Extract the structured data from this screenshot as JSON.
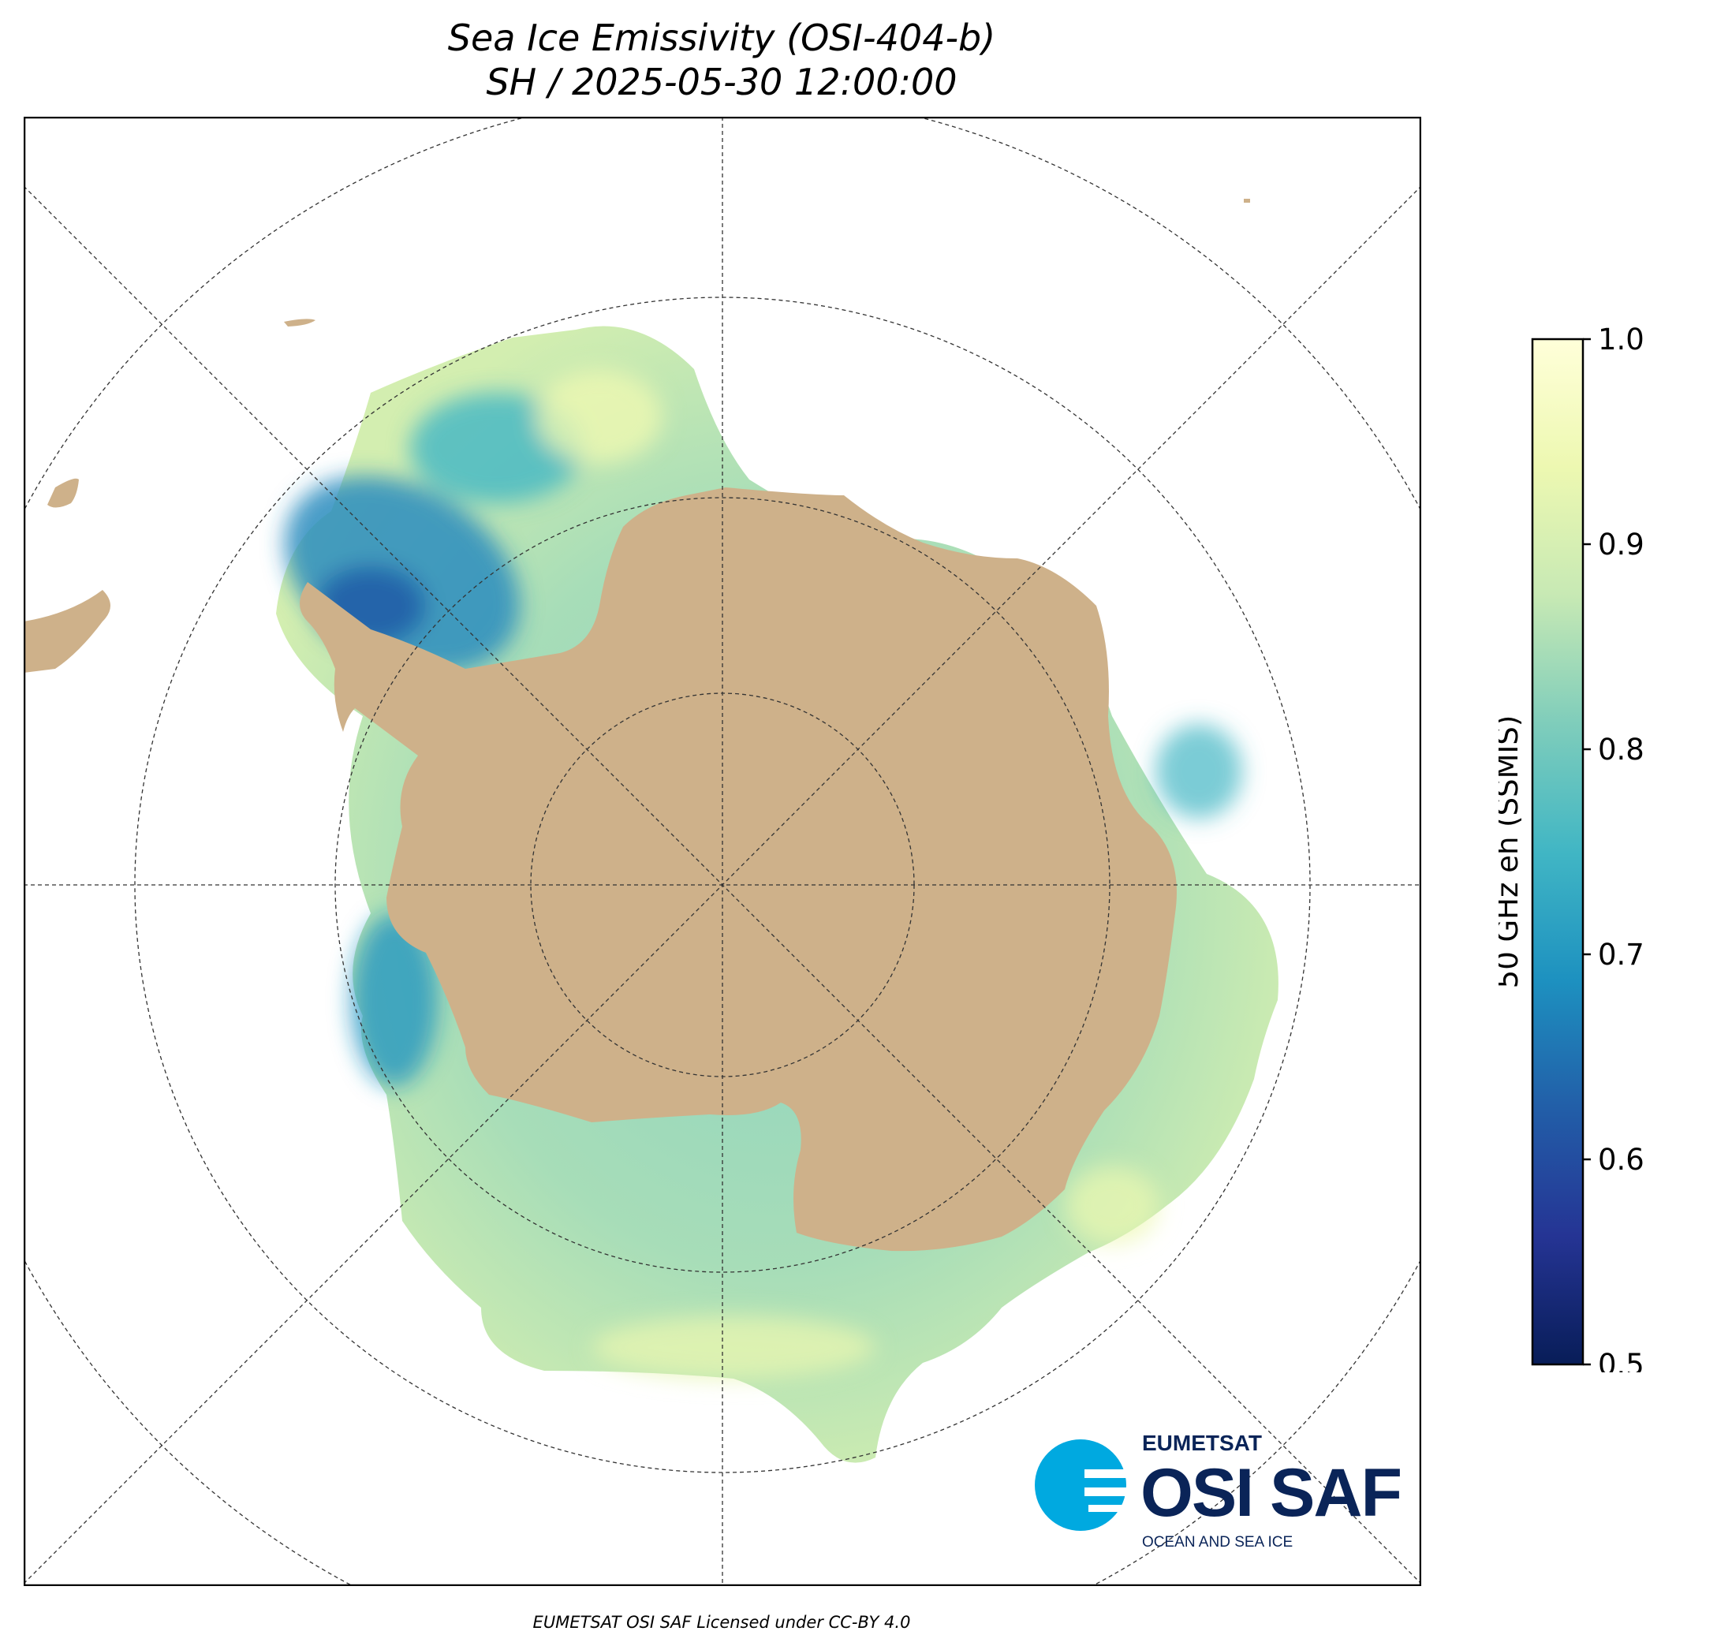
{
  "title": {
    "line1": "Sea Ice Emissivity (OSI-404-b)",
    "line2": "SH / 2025-05-30 12:00:00"
  },
  "colorbar": {
    "label": "50 GHz eh (SSMIS)",
    "ticks": [
      "1.0",
      "0.9",
      "0.8",
      "0.7",
      "0.6",
      "0.5"
    ],
    "range": [
      0.5,
      1.0
    ],
    "colormap": "YlGnBu_r",
    "stops": [
      "#081d58",
      "#253494",
      "#225ea8",
      "#1d91c0",
      "#41b6c4",
      "#7fcdbb",
      "#c7e9b4",
      "#edf8b1",
      "#ffffd9"
    ]
  },
  "map": {
    "projection": "south-polar-stereographic",
    "land_color": "#ceb18a",
    "ocean_color": "#ffffff",
    "gridlines": "dashed"
  },
  "logo": {
    "org": "EUMETSAT",
    "name": "OSI SAF",
    "tagline": "OCEAN AND SEA ICE",
    "color_dark": "#0a2458",
    "color_accent": "#00a9e0"
  },
  "credit": "EUMETSAT OSI SAF Licensed under CC-BY 4.0"
}
